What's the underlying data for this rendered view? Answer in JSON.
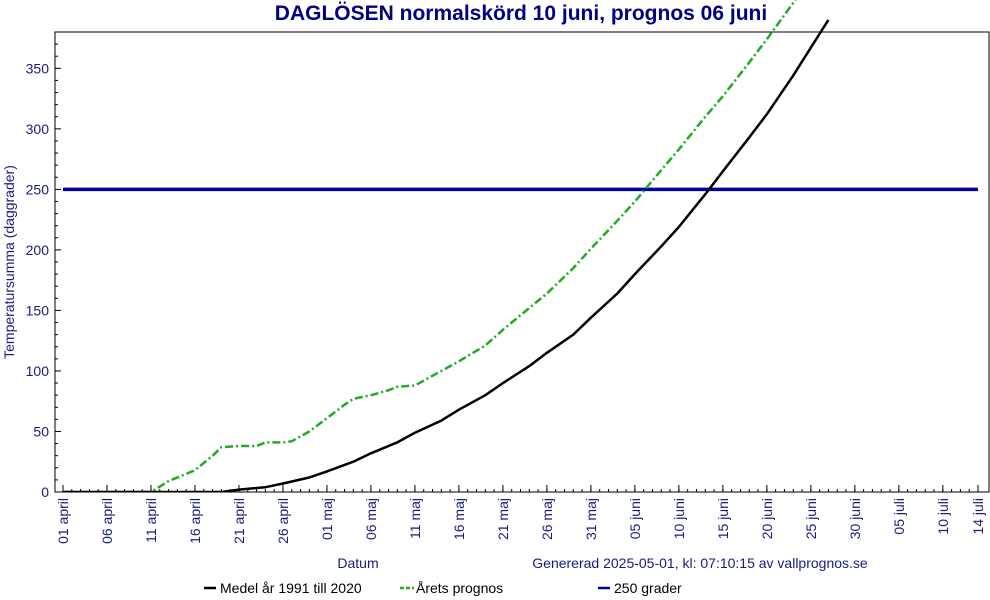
{
  "colors": {
    "title": "#000080",
    "axis_text": "#1a1a80",
    "footer_text": "#1a1a80",
    "legend_text": "#000000",
    "frame": "#000000",
    "medel": "#000000",
    "prognos": "#22aa22",
    "grader": "#0000a0",
    "background": "#ffffff"
  },
  "chart_data": {
    "type": "line",
    "title": "DAGLÖSEN normalskörd 10 juni, prognos 06 juni",
    "xlabel": "Datum",
    "ylabel": "Temperatursumma (daggrader)",
    "generated_note": "Genererad 2025-05-01, kl: 07:10:15 av vallprognos.se",
    "x_tick_labels": [
      "01 april",
      "06 april",
      "11 april",
      "16 april",
      "21 april",
      "26 april",
      "01 maj",
      "06 maj",
      "11 maj",
      "16 maj",
      "21 maj",
      "26 maj",
      "31 maj",
      "05 juni",
      "10 juni",
      "15 juni",
      "20 juni",
      "25 juni",
      "30 juni",
      "05 juli",
      "10 juli",
      "14 juli"
    ],
    "x_tick_days": [
      0,
      5,
      10,
      15,
      20,
      25,
      30,
      35,
      40,
      45,
      50,
      55,
      60,
      65,
      70,
      75,
      80,
      85,
      90,
      95,
      100,
      104
    ],
    "xlim_days": [
      0,
      104
    ],
    "ylim": [
      0,
      380
    ],
    "y_ticks": [
      0,
      50,
      100,
      150,
      200,
      250,
      300,
      350
    ],
    "grid": false,
    "legend_position": "bottom",
    "series": [
      {
        "name": "Medel år 1991 till 2020",
        "style": "solid",
        "x_days": [
          0,
          10,
          15,
          18,
          20,
          23,
          25,
          28,
          30,
          33,
          35,
          38,
          40,
          43,
          45,
          48,
          50,
          53,
          55,
          58,
          60,
          63,
          65,
          68,
          70,
          73,
          75,
          78,
          80,
          83,
          85,
          87
        ],
        "values": [
          0,
          0,
          0,
          0,
          2,
          4,
          7,
          12,
          17,
          25,
          32,
          41,
          49,
          59,
          68,
          80,
          90,
          104,
          115,
          130,
          144,
          164,
          180,
          203,
          219,
          246,
          265,
          293,
          312,
          344,
          367,
          390
        ]
      },
      {
        "name": "Årets prognos",
        "style": "dashdot",
        "x_days": [
          0,
          9,
          10,
          12,
          15,
          17,
          18,
          20,
          22,
          23,
          25,
          26,
          28,
          30,
          32,
          33,
          35,
          37,
          38,
          40,
          42,
          45,
          48,
          50,
          53,
          55,
          58,
          60,
          63,
          65,
          68,
          70,
          73,
          75,
          78,
          80,
          83,
          84
        ],
        "values": [
          0,
          0,
          0,
          9,
          18,
          30,
          37,
          38,
          38,
          41,
          41,
          42,
          50,
          61,
          72,
          77,
          80,
          84,
          87,
          88,
          96,
          108,
          121,
          134,
          152,
          164,
          185,
          201,
          224,
          240,
          266,
          283,
          310,
          327,
          355,
          374,
          404,
          414
        ]
      },
      {
        "name": "250 grader",
        "style": "solid",
        "x_days": [
          0,
          104
        ],
        "values": [
          250,
          250
        ]
      }
    ]
  }
}
